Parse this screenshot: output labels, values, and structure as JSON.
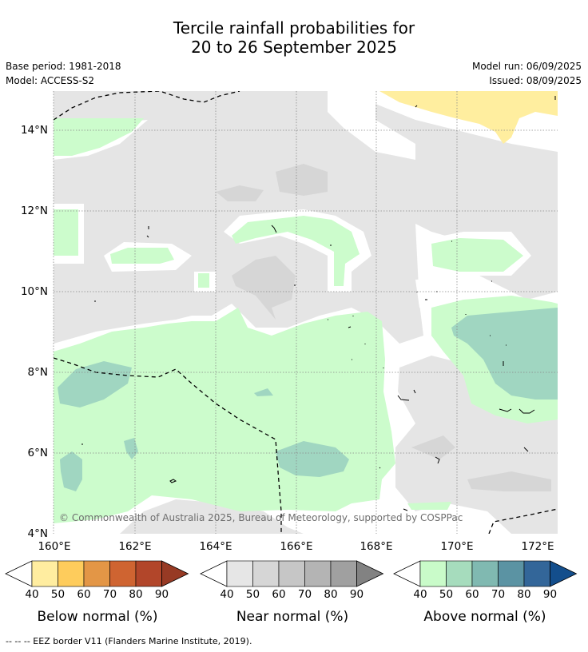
{
  "title_line1": "Tercile rainfall probabilities for",
  "title_line2": "20 to 26 September 2025",
  "base_period": "Base period: 1981-2018",
  "model": "Model: ACCESS-S2",
  "model_run": "Model run: 06/09/2025",
  "issued": "Issued: 08/09/2025",
  "copyright": "© Commonwealth of Australia 2025, Bureau of Meteorology, supported by COSPPac",
  "footnote": "--  --  -- EEZ border V11 (Flanders Marine Institute, 2019).",
  "lat_ticks": [
    "14°N",
    "12°N",
    "10°N",
    "8°N",
    "6°N",
    "4°N"
  ],
  "lon_ticks": [
    "160°E",
    "162°E",
    "164°E",
    "166°E",
    "168°E",
    "170°E",
    "172°E"
  ],
  "colorbars": [
    {
      "title": "Below normal (%)",
      "labels": [
        "40",
        "50",
        "60",
        "70",
        "80",
        "90"
      ],
      "colors": [
        "#ffffff",
        "#ffeda0",
        "#fecc5c",
        "#e39646",
        "#cf6431",
        "#b2462a",
        "#973a24"
      ]
    },
    {
      "title": "Near normal (%)",
      "labels": [
        "40",
        "50",
        "60",
        "70",
        "80",
        "90"
      ],
      "colors": [
        "#ffffff",
        "#e6e6e6",
        "#d6d6d6",
        "#c6c6c6",
        "#b4b4b4",
        "#a0a0a0",
        "#828282"
      ]
    },
    {
      "title": "Above normal (%)",
      "labels": [
        "40",
        "50",
        "60",
        "70",
        "80",
        "90"
      ],
      "colors": [
        "#ffffff",
        "#c9fbc9",
        "#a6dcbd",
        "#80b9b1",
        "#5b93a3",
        "#336699",
        "#134e8c"
      ]
    }
  ],
  "colors": {
    "near_normal_50": "#e5e5e5",
    "near_normal_60": "#d6d6d6",
    "above_normal_50": "#ccfccc",
    "above_normal_60": "#a0d6c1",
    "below_normal_50": "#ffee9f",
    "grid": "#888888"
  }
}
